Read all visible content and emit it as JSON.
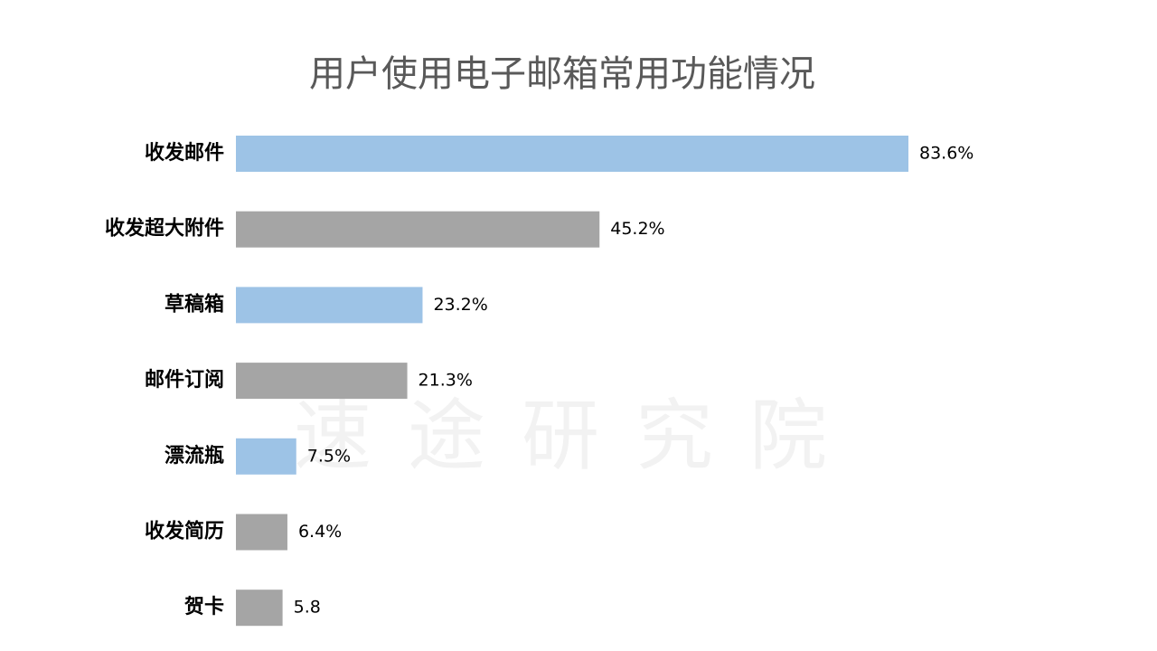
{
  "chart_data": {
    "type": "barh",
    "title": "用户使用电子邮箱常用功能情况",
    "watermark": "速途研究院",
    "categories": [
      "收发邮件",
      "收发超大附件",
      "草稿箱",
      "邮件订阅",
      "漂流瓶",
      "收发简历",
      "贺卡"
    ],
    "values": [
      83.6,
      45.2,
      23.2,
      21.3,
      7.5,
      6.4,
      5.8
    ],
    "value_labels": [
      "83.6%",
      "45.2%",
      "23.2%",
      "21.3%",
      "7.5%",
      "6.4%",
      "5.8"
    ],
    "colors": [
      "#9dc3e6",
      "#a5a5a5",
      "#9dc3e6",
      "#a5a5a5",
      "#9dc3e6",
      "#a5a5a5",
      "#a5a5a5"
    ]
  }
}
